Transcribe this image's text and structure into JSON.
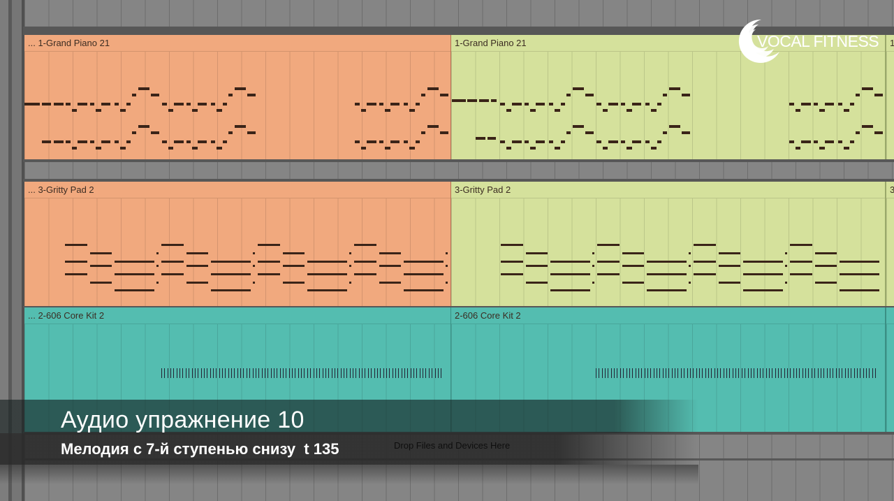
{
  "tracks": [
    {
      "clips": [
        {
          "label": "... 1-Grand Piano 21",
          "color": "#f1a97e"
        },
        {
          "label": "1-Grand Piano 21",
          "color": "#d5e19c"
        },
        {
          "label": "1",
          "color": "#d5e19c"
        }
      ]
    },
    {
      "clips": [
        {
          "label": "... 3-Gritty Pad 2",
          "color": "#f1a97e"
        },
        {
          "label": "3-Gritty Pad 2",
          "color": "#d5e19c"
        },
        {
          "label": "3",
          "color": "#d5e19c"
        }
      ]
    },
    {
      "clips": [
        {
          "label": "... 2-606 Core Kit 2",
          "color": "#54bdb0"
        },
        {
          "label": "2-606 Core Kit 2",
          "color": "#54bdb0"
        },
        {
          "label": "",
          "color": "#54bdb0"
        }
      ]
    }
  ],
  "drop_hint": "Drop Files and Devices Here",
  "logo": {
    "text": "VOCAL FITNESS"
  },
  "caption": {
    "title": "Аудио упражнение 10",
    "subtitle": "Мелодия с 7-й ступенью снизу  t 135"
  }
}
